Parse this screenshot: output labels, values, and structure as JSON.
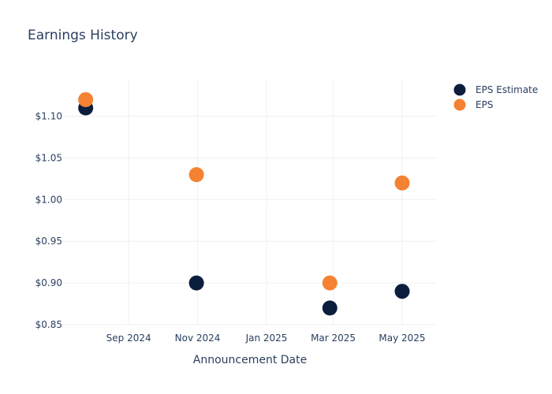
{
  "chart_data": {
    "type": "scatter",
    "title": "Earnings History",
    "xlabel": "Announcement Date",
    "ylabel": "",
    "x_ticks": [
      "Sep 2024",
      "Nov 2024",
      "Jan 2025",
      "Mar 2025",
      "May 2025"
    ],
    "x_tick_dates": [
      "2024-09-01",
      "2024-11-01",
      "2025-01-01",
      "2025-03-01",
      "2025-05-01"
    ],
    "x_range": [
      "2024-07-05",
      "2025-05-31"
    ],
    "ylim": [
      0.85,
      1.145
    ],
    "y_ticks": [
      0.85,
      0.9,
      0.95,
      1.0,
      1.05,
      1.1
    ],
    "y_tick_labels": [
      "$0.85",
      "$0.90",
      "$0.95",
      "$1.00",
      "$1.05",
      "$1.10"
    ],
    "grid": true,
    "legend_position": "top-right",
    "series": [
      {
        "name": "EPS Estimate",
        "color": "#0c1e3e",
        "points": [
          {
            "x": "2024-07-25",
            "y": 1.11
          },
          {
            "x": "2024-10-31",
            "y": 0.9
          },
          {
            "x": "2025-02-26",
            "y": 0.87
          },
          {
            "x": "2025-05-01",
            "y": 0.89
          }
        ]
      },
      {
        "name": "EPS",
        "color": "#f58232",
        "points": [
          {
            "x": "2024-07-25",
            "y": 1.12
          },
          {
            "x": "2024-10-31",
            "y": 1.03
          },
          {
            "x": "2025-02-26",
            "y": 0.9
          },
          {
            "x": "2025-05-01",
            "y": 1.02
          }
        ]
      }
    ]
  }
}
